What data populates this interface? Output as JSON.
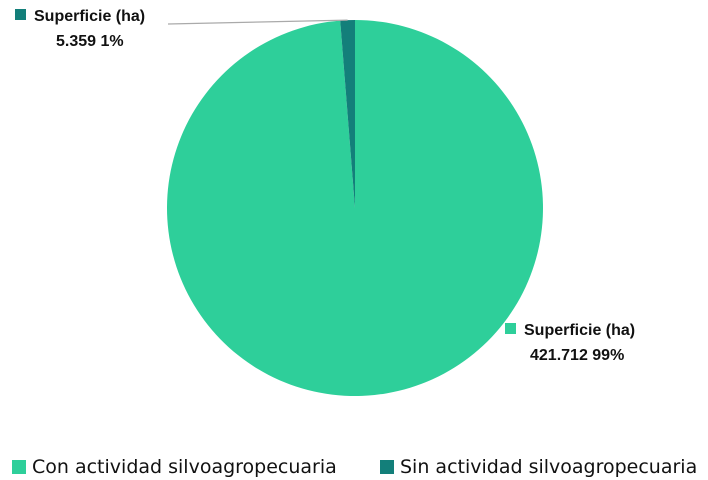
{
  "chart_data": {
    "type": "pie",
    "title": "",
    "series": [
      {
        "name": "Superficie (ha)",
        "slices": [
          {
            "category": "Con actividad silvoagropecuaria",
            "value": 421712,
            "value_label": "421.712",
            "percent_label": "99%",
            "color": "#2ecf9a"
          },
          {
            "category": "Sin actividad silvoagropecuaria",
            "value": 5359,
            "value_label": "5.359",
            "percent_label": "1%",
            "color": "#137f7a"
          }
        ]
      }
    ],
    "data_labels": [
      {
        "title": "Superficie (ha)",
        "value_text": "421.712 99%"
      },
      {
        "title": "Superficie (ha)",
        "value_text": "5.359 1%"
      }
    ],
    "legend": {
      "position": "bottom",
      "entries": [
        {
          "label": "Con actividad silvoagropecuaria",
          "color": "#2ecf9a"
        },
        {
          "label": "Sin actividad silvoagropecuaria",
          "color": "#137f7a"
        }
      ]
    }
  }
}
